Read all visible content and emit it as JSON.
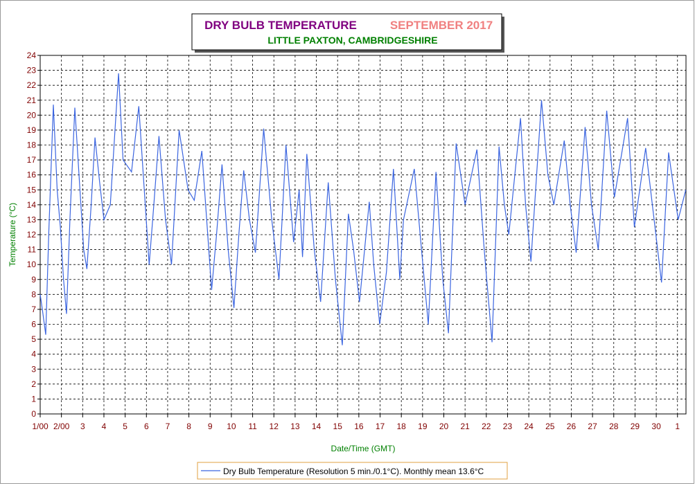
{
  "chart_data": {
    "type": "line",
    "title": "DRY BULB TEMPERATURE",
    "period": "SEPTEMBER 2017",
    "subtitle": "LITTLE PAXTON, CAMBRIDGESHIRE",
    "xlabel": "Date/Time (GMT)",
    "ylabel": "Temperature (°C)",
    "grid": true,
    "xlim": [
      1,
      31.4
    ],
    "ylim": [
      0,
      24
    ],
    "xticks": [
      {
        "value": 1,
        "label": "1/00"
      },
      {
        "value": 2,
        "label": "2/00"
      },
      3,
      4,
      5,
      6,
      7,
      8,
      9,
      10,
      11,
      12,
      13,
      14,
      15,
      16,
      17,
      18,
      19,
      20,
      21,
      22,
      23,
      24,
      25,
      26,
      27,
      28,
      29,
      30,
      {
        "value": 31,
        "label": "1"
      }
    ],
    "yticks": [
      0,
      1,
      2,
      3,
      4,
      5,
      6,
      7,
      8,
      9,
      10,
      11,
      12,
      13,
      14,
      15,
      16,
      17,
      18,
      19,
      20,
      21,
      22,
      23,
      24
    ],
    "x": [
      1.0,
      1.1,
      1.26,
      1.4,
      1.62,
      1.8,
      1.95,
      2.1,
      2.24,
      2.4,
      2.63,
      2.85,
      3.05,
      3.2,
      3.4,
      3.58,
      3.8,
      4.0,
      4.3,
      4.69,
      4.9,
      5.3,
      5.64,
      5.9,
      6.13,
      6.35,
      6.59,
      6.9,
      7.18,
      7.54,
      7.96,
      8.25,
      8.61,
      9.07,
      9.3,
      9.56,
      9.85,
      10.12,
      10.35,
      10.58,
      10.85,
      11.13,
      11.52,
      11.9,
      12.24,
      12.57,
      12.93,
      13.19,
      13.35,
      13.55,
      13.9,
      14.2,
      14.56,
      14.9,
      15.22,
      15.51,
      15.75,
      16.03,
      16.49,
      16.7,
      16.98,
      17.3,
      17.63,
      17.93,
      18.1,
      18.61,
      18.95,
      19.27,
      19.63,
      19.95,
      20.22,
      20.58,
      21.0,
      21.56,
      21.9,
      22.27,
      22.6,
      22.85,
      23.06,
      23.61,
      23.85,
      24.1,
      24.6,
      24.9,
      25.18,
      25.67,
      25.95,
      26.23,
      26.65,
      26.95,
      27.27,
      27.67,
      28.03,
      28.65,
      28.97,
      29.5,
      29.9,
      30.25,
      30.58,
      31.03,
      31.39
    ],
    "series": [
      {
        "name": "Dry Bulb Temperature (Resolution 5 min./0.1°C). Monthly mean 13.6°C",
        "color": "#3a64e0",
        "values": [
          8.0,
          7.0,
          5.3,
          12.0,
          20.7,
          15.0,
          12.5,
          9.0,
          6.7,
          13.0,
          20.5,
          15.5,
          11.0,
          9.7,
          14.0,
          18.5,
          15.5,
          13.0,
          14.0,
          22.8,
          17.0,
          16.2,
          20.6,
          15.0,
          10.0,
          14.0,
          18.6,
          13.0,
          10.0,
          19.0,
          15.0,
          14.3,
          17.6,
          8.3,
          12.0,
          16.7,
          11.0,
          7.1,
          12.0,
          16.3,
          13.0,
          10.8,
          19.1,
          13.0,
          9.0,
          18.0,
          11.5,
          15.0,
          10.5,
          17.4,
          11.0,
          7.5,
          15.5,
          9.0,
          4.6,
          13.4,
          11.0,
          7.5,
          14.2,
          10.0,
          6.0,
          9.5,
          16.4,
          9.0,
          13.0,
          16.4,
          11.0,
          6.0,
          16.2,
          9.0,
          5.4,
          18.1,
          14.0,
          17.7,
          11.0,
          4.8,
          17.9,
          14.0,
          12.0,
          19.8,
          14.0,
          10.2,
          21.0,
          16.0,
          14.0,
          18.3,
          14.0,
          10.8,
          19.2,
          14.0,
          11.0,
          20.3,
          14.5,
          19.8,
          12.5,
          17.8,
          13.0,
          8.8,
          17.5,
          13.0,
          15.0
        ]
      }
    ]
  }
}
